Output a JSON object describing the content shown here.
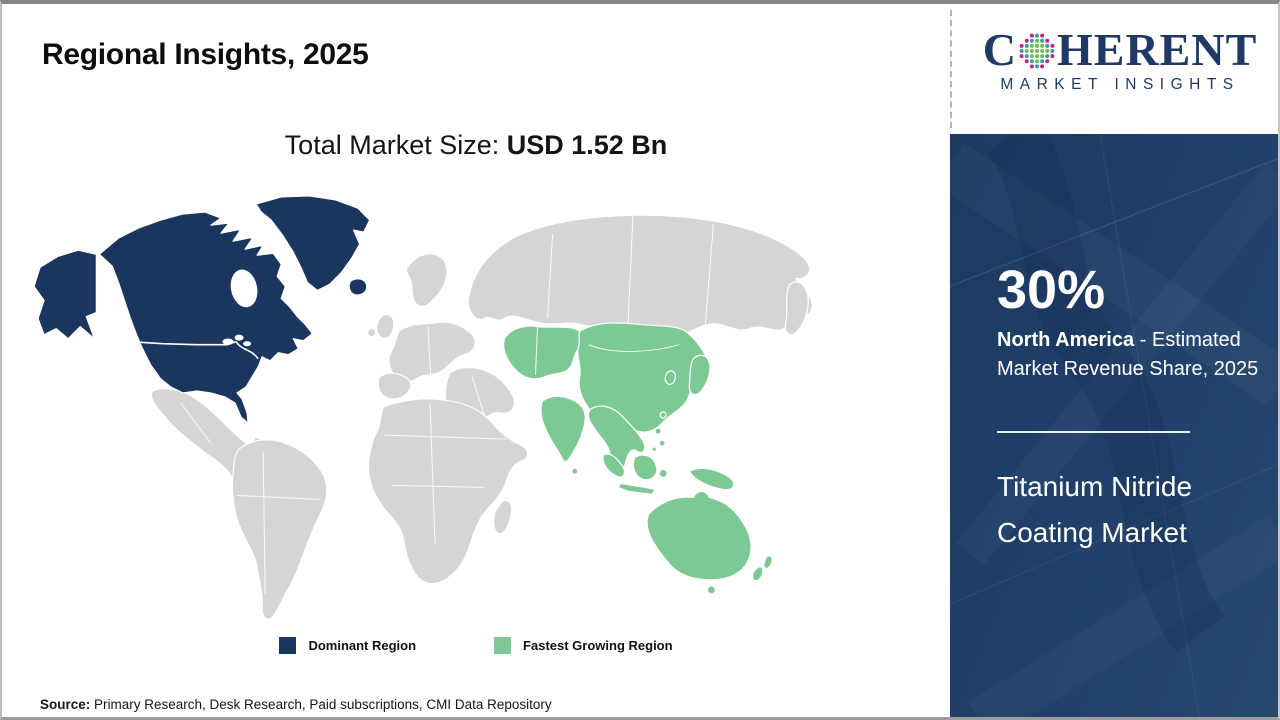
{
  "page": {
    "title": "Regional Insights, 2025",
    "market_size_label": "Total Market Size: ",
    "market_size_value": "USD 1.52 Bn",
    "source": {
      "label": "Source:",
      "text": " Primary Research, Desk Research, Paid subscriptions, CMI Data Repository"
    }
  },
  "logo": {
    "prefix": "C",
    "suffix": "HERENT",
    "tagline": "MARKET INSIGHTS",
    "brand_navy": "#1f3864",
    "globe_colors": {
      "teal": "#2e9fae",
      "green": "#6cbe4a",
      "pink": "#c5247c"
    }
  },
  "legend": {
    "dominant": {
      "label": "Dominant Region",
      "color": "#1a355e"
    },
    "fastest": {
      "label": "Fastest Growing Region",
      "color": "#7dc993"
    }
  },
  "sidebar": {
    "share_value": "30%",
    "share_region": "North America",
    "share_desc": " - Estimated Market Revenue Share, 2025",
    "market_name": "Titanium Nitride Coating Market"
  },
  "map": {
    "dominant_region": "North America",
    "fastest_growing_region": "Asia Pacific",
    "colors": {
      "dominant": "#1a355e",
      "fastest": "#7dc993",
      "other": "#d5d5d5",
      "border": "#ffffff"
    }
  }
}
